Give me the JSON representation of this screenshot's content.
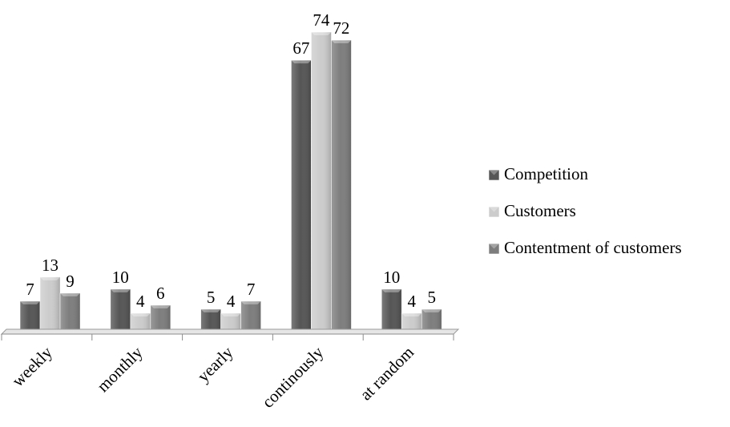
{
  "chart_data": {
    "type": "bar",
    "title": "",
    "xlabel": "",
    "ylabel": "",
    "categories": [
      "weekly",
      "monthly",
      "yearly",
      "continously",
      "at random"
    ],
    "series": [
      {
        "name": "Competition",
        "values": [
          7,
          10,
          5,
          67,
          10
        ],
        "color": "#555555"
      },
      {
        "name": "Customers",
        "values": [
          13,
          4,
          4,
          74,
          4
        ],
        "color": "#cccccc"
      },
      {
        "name": "Contentment of customers",
        "values": [
          9,
          6,
          7,
          72,
          5
        ],
        "color": "#7d7d7d"
      }
    ],
    "ylim": [
      0,
      74
    ],
    "grid": false,
    "show_value_axis": false,
    "data_labels": true,
    "legend_position": "right"
  }
}
